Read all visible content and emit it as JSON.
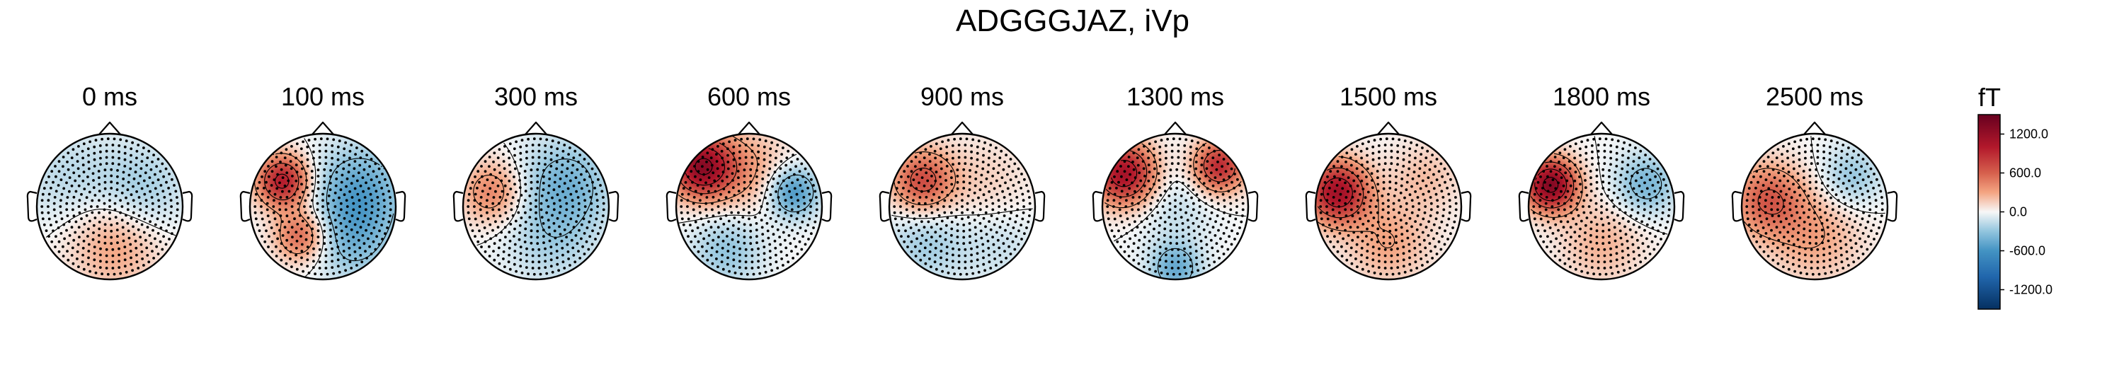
{
  "chart_data": {
    "type": "heatmap",
    "subtype": "topomap",
    "title": "ADGGGJAZ, iVp",
    "time_labels": [
      "0 ms",
      "100 ms",
      "300 ms",
      "600 ms",
      "900 ms",
      "1300 ms",
      "1500 ms",
      "1800 ms",
      "2500 ms"
    ],
    "colorbar": {
      "unit": "fT",
      "range": [
        -1500,
        1500
      ],
      "ticks": [
        1200.0,
        600.0,
        0.0,
        -600.0,
        -1200.0
      ],
      "tick_labels": [
        "1200.0",
        "600.0",
        "0.0",
        "-600.0",
        "-1200.0"
      ],
      "colormap": "RdBu_r",
      "color_stops": [
        {
          "value": -1500,
          "color": "#053061"
        },
        {
          "value": -1000,
          "color": "#2166ac"
        },
        {
          "value": -600,
          "color": "#4393c3"
        },
        {
          "value": -300,
          "color": "#92c5de"
        },
        {
          "value": 0,
          "color": "#f7f7f7"
        },
        {
          "value": 300,
          "color": "#f4a582"
        },
        {
          "value": 600,
          "color": "#d6604d"
        },
        {
          "value": 1000,
          "color": "#b2182b"
        },
        {
          "value": 1500,
          "color": "#67001f"
        }
      ]
    },
    "maps": [
      {
        "time": "0 ms",
        "sources": [
          [
            -0.5,
            0.3,
            -250,
            0.5
          ],
          [
            0.4,
            0.2,
            -350,
            0.45
          ],
          [
            0.0,
            -0.1,
            250,
            0.55
          ],
          [
            0.1,
            -0.6,
            200,
            0.4
          ]
        ]
      },
      {
        "time": "100 ms",
        "sources": [
          [
            -0.55,
            0.35,
            1000,
            0.25
          ],
          [
            -0.3,
            -0.4,
            600,
            0.25
          ],
          [
            0.5,
            0.2,
            -500,
            0.45
          ],
          [
            0.4,
            -0.5,
            -300,
            0.4
          ]
        ]
      },
      {
        "time": "300 ms",
        "sources": [
          [
            -0.6,
            0.2,
            450,
            0.3
          ],
          [
            0.4,
            0.3,
            -400,
            0.45
          ],
          [
            0.2,
            -0.5,
            -200,
            0.45
          ]
        ]
      },
      {
        "time": "600 ms",
        "sources": [
          [
            -0.65,
            0.55,
            1200,
            0.3
          ],
          [
            0.6,
            0.2,
            -600,
            0.25
          ],
          [
            -0.3,
            -0.6,
            -300,
            0.35
          ],
          [
            0.0,
            0.5,
            300,
            0.4
          ]
        ]
      },
      {
        "time": "900 ms",
        "sources": [
          [
            -0.55,
            0.35,
            700,
            0.3
          ],
          [
            0.3,
            0.3,
            150,
            0.45
          ],
          [
            -0.5,
            -0.5,
            -250,
            0.4
          ],
          [
            0.5,
            -0.5,
            -150,
            0.4
          ]
        ]
      },
      {
        "time": "1300 ms",
        "sources": [
          [
            -0.7,
            0.45,
            1100,
            0.3
          ],
          [
            0.6,
            0.55,
            900,
            0.25
          ],
          [
            0.0,
            -0.85,
            -450,
            0.25
          ],
          [
            0.0,
            0.0,
            -150,
            0.4
          ]
        ]
      },
      {
        "time": "1500 ms",
        "sources": [
          [
            -0.7,
            0.2,
            1100,
            0.3
          ],
          [
            0.0,
            -0.5,
            300,
            0.4
          ],
          [
            0.5,
            0.4,
            200,
            0.35
          ]
        ]
      },
      {
        "time": "1800 ms",
        "sources": [
          [
            -0.7,
            0.3,
            1300,
            0.25
          ],
          [
            0.6,
            0.3,
            -400,
            0.3
          ],
          [
            0.0,
            -0.5,
            250,
            0.4
          ]
        ]
      },
      {
        "time": "2500 ms",
        "sources": [
          [
            -0.65,
            0.1,
            600,
            0.35
          ],
          [
            0.5,
            0.4,
            -300,
            0.3
          ],
          [
            0.0,
            -0.4,
            300,
            0.45
          ]
        ]
      }
    ]
  }
}
